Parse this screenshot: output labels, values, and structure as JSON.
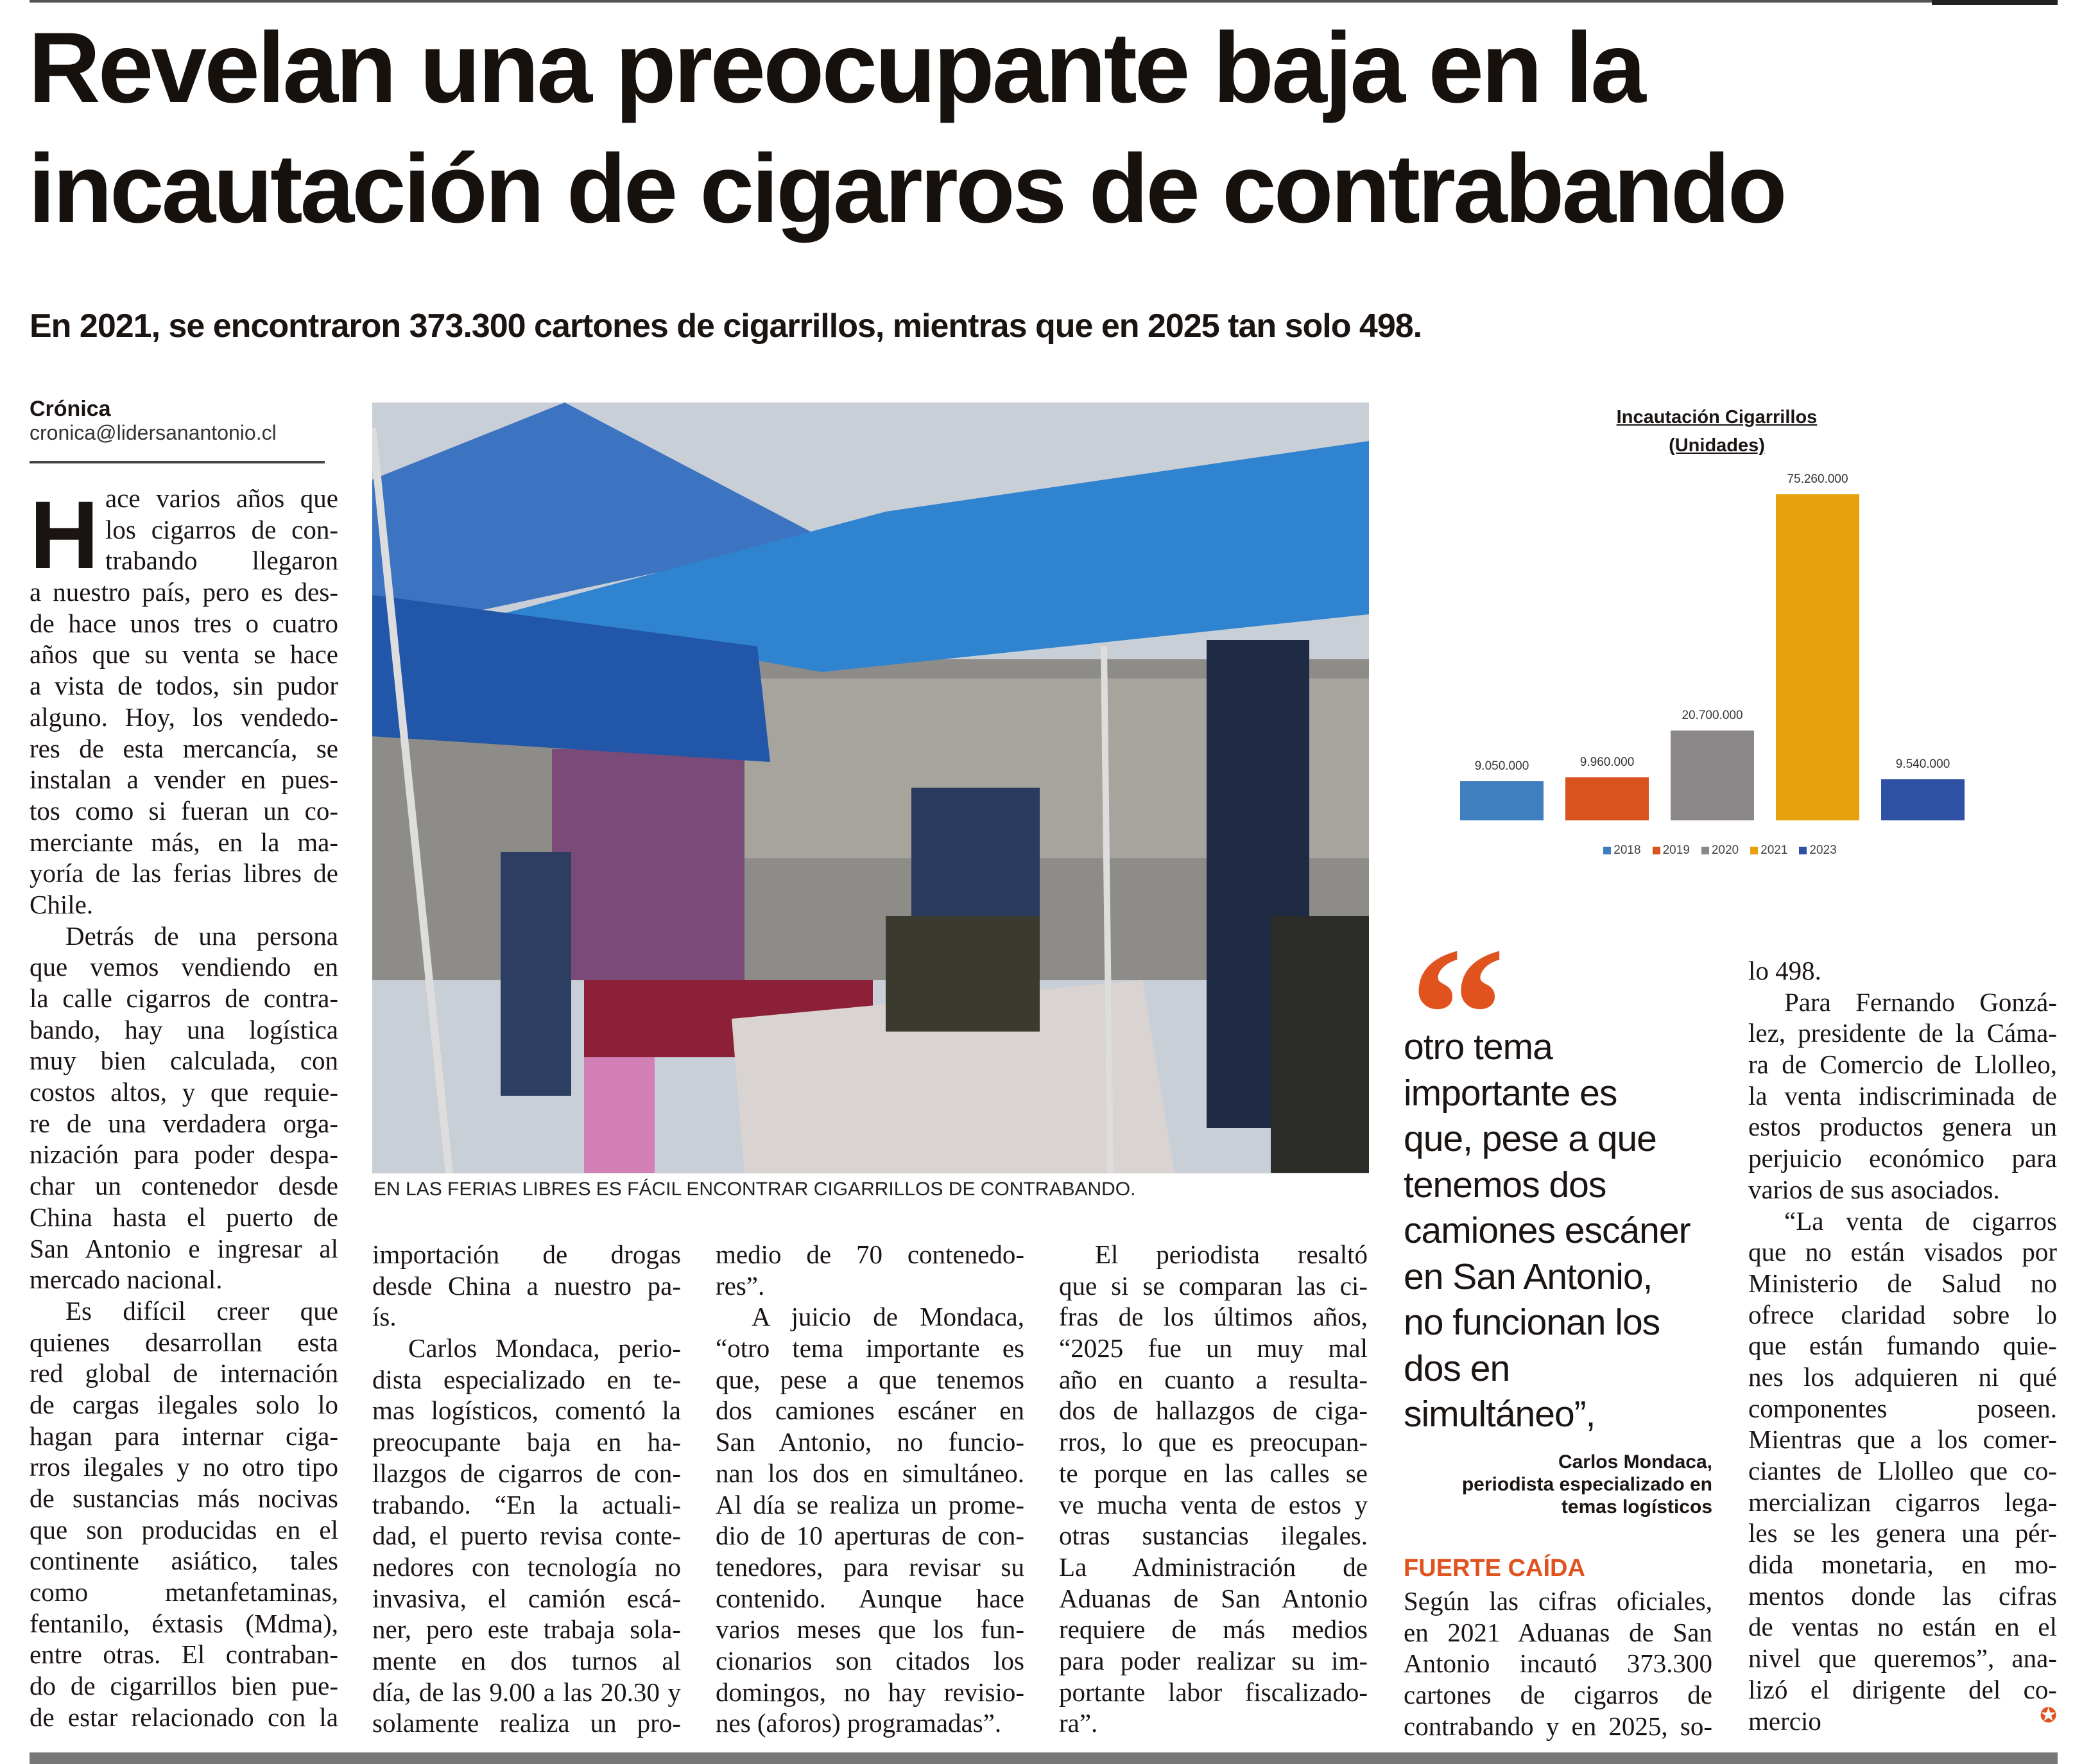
{
  "headline": [
    "Revelan una preocupante baja en la",
    "incautación de cigarros de contrabando"
  ],
  "subtitle": "En 2021, se encontraron 373.300 cartones de cigarrillos, mientras que en 2025 tan solo 498.",
  "byline": {
    "section": "Crónica",
    "email": "cronica@lidersanantonio.cl"
  },
  "drop_cap": "H",
  "photo_caption": "EN LAS FERIAS LIBRES ES FÁCIL ENCONTRAR CIGARRILLOS DE CONTRABANDO.",
  "columns": [
    [
      {
        "indent": false,
        "lines": [
          "ace varios años que",
          "los cigarros de con-",
          "trabando llegaron",
          "a nuestro país, pero es des-",
          "de hace unos tres o cuatro",
          "años que su venta se hace",
          "a vista de todos, sin pudor",
          "alguno. Hoy, los vendedo-",
          "res de esta mercancía, se",
          "instalan a vender en pues-",
          "tos como si fueran un co-",
          "merciante más, en la ma-",
          "yoría de las ferias libres de",
          "Chile."
        ]
      },
      {
        "indent": true,
        "lines": [
          "Detrás de una persona",
          "que vemos vendiendo en",
          "la calle cigarros de contra-",
          "bando, hay una logística",
          "muy bien calculada, con",
          "costos altos, y que requie-",
          "re de una verdadera orga-",
          "nización para poder despa-",
          "char un contenedor desde",
          "China hasta el puerto de",
          "San Antonio e ingresar al",
          "mercado nacional."
        ]
      },
      {
        "indent": true,
        "continues": true,
        "lines": [
          "Es difícil creer que",
          "quienes desarrollan esta",
          "red global de internación",
          "de cargas ilegales solo lo",
          "hagan para internar ciga-",
          "rros ilegales y no otro tipo",
          "de sustancias más nocivas",
          "que son producidas en el",
          "continente asiático, tales",
          "como metanfetaminas,",
          "fentanilo, éxtasis (Mdma),",
          "entre otras. El contraban-",
          "do de cigarrillos bien pue-",
          "de estar relacionado con la"
        ]
      }
    ],
    [
      {
        "indent": false,
        "lines": [
          "importación de drogas",
          "desde China a nuestro pa-",
          "ís."
        ]
      },
      {
        "indent": true,
        "continues": true,
        "lines": [
          "Carlos Mondaca, perio-",
          "dista especializado en te-",
          "mas logísticos, comentó la",
          "preocupante baja en ha-",
          "llazgos de cigarros de con-",
          "trabando. “En la actuali-",
          "dad, el puerto revisa conte-",
          "nedores con tecnología no",
          "invasiva, el camión escá-",
          "ner, pero este trabaja sola-",
          "mente en dos turnos al",
          "día, de las 9.00 a las 20.30 y",
          "solamente realiza un pro-"
        ]
      }
    ],
    [
      {
        "indent": false,
        "lines": [
          "medio de 70 contenedo-",
          "res”."
        ]
      },
      {
        "indent": true,
        "lines": [
          "A juicio de Mondaca,",
          "“otro tema importante es",
          "que, pese a que tenemos",
          "dos camiones escáner en",
          "San Antonio, no funcio-",
          "nan los dos en simultáneo.",
          "Al día se realiza un prome-",
          "dio de 10 aperturas de con-",
          "tenedores, para revisar su",
          "contenido. Aunque hace",
          "varios meses que los fun-",
          "cionarios son citados los",
          "domingos, no hay revisio-",
          "nes (aforos) programadas”."
        ]
      }
    ],
    [
      {
        "indent": true,
        "lines": [
          "El periodista resaltó",
          "que si se comparan las ci-",
          "fras de los últimos años,",
          "“2025 fue un muy mal",
          "año en cuanto a resulta-",
          "dos de hallazgos de ciga-",
          "rros, lo que es preocupan-",
          "te porque en las calles se",
          "ve mucha venta de estos y",
          "otras sustancias ilegales.",
          "La Administración de",
          "Aduanas de San Antonio",
          "requiere de más medios",
          "para poder realizar su im-",
          "portante labor fiscalizado-",
          "ra”."
        ]
      }
    ],
    [
      {
        "indent": false,
        "continues": true,
        "lines": [
          "Según las cifras oficiales,",
          "en 2021 Aduanas de San",
          "Antonio incautó 373.300",
          "cartones de cigarros de",
          "contrabando y en 2025, so-"
        ]
      }
    ],
    [
      {
        "indent": false,
        "lines": [
          "lo 498."
        ]
      },
      {
        "indent": true,
        "lines": [
          "Para Fernando Gonzá-",
          "lez, presidente de la Cáma-",
          "ra de Comercio de Llolleo,",
          "la venta indiscriminada de",
          "estos productos genera un",
          "perjuicio económico para",
          "varios de sus asociados."
        ]
      },
      {
        "indent": true,
        "lines": [
          "“La venta de cigarros",
          "que no están visados por",
          "Ministerio de Salud no",
          "ofrece claridad sobre lo",
          "que están fumando quie-",
          "nes los adquieren ni qué",
          "componentes poseen.",
          "Mientras que a los comer-",
          "ciantes de Llolleo que co-",
          "mercializan cigarros lega-",
          "les se les genera una pér-",
          "dida monetaria, en mo-",
          "mentos donde las cifras",
          "de ventas no están en el",
          "nivel que queremos”, ana-",
          "lizó el dirigente del co-",
          "mercio"
        ]
      }
    ]
  ],
  "pull_quote": {
    "mark": "“",
    "lines": [
      "otro tema",
      "importante es",
      "que, pese a que",
      "tenemos dos",
      "camiones escáner",
      "en San Antonio,",
      "no funcionan los",
      "dos en",
      "simultáneo”,"
    ],
    "attribution": [
      "Carlos Mondaca,",
      "periodista especializado en",
      "temas logísticos"
    ]
  },
  "subhead": "FUERTE CAÍDA",
  "end_mark": "✪",
  "accent_color": "#e0531f",
  "chart_data": {
    "type": "bar",
    "title": [
      "Incautación Cigarrillos",
      "(Unidades)"
    ],
    "categories": [
      "2018",
      "2019",
      "2020",
      "2021",
      "2023"
    ],
    "values": [
      9050000,
      9960000,
      20700000,
      75260000,
      9540000
    ],
    "value_labels": [
      "9.050.000",
      "9.960.000",
      "20.700.000",
      "75.260.000",
      "9.540.000"
    ],
    "colors": [
      "#3f7fc0",
      "#d9531e",
      "#8c8788",
      "#e6a10c",
      "#2f51a3"
    ],
    "ylim": [
      0,
      80000000
    ],
    "grid": false,
    "legend": "bottom"
  }
}
